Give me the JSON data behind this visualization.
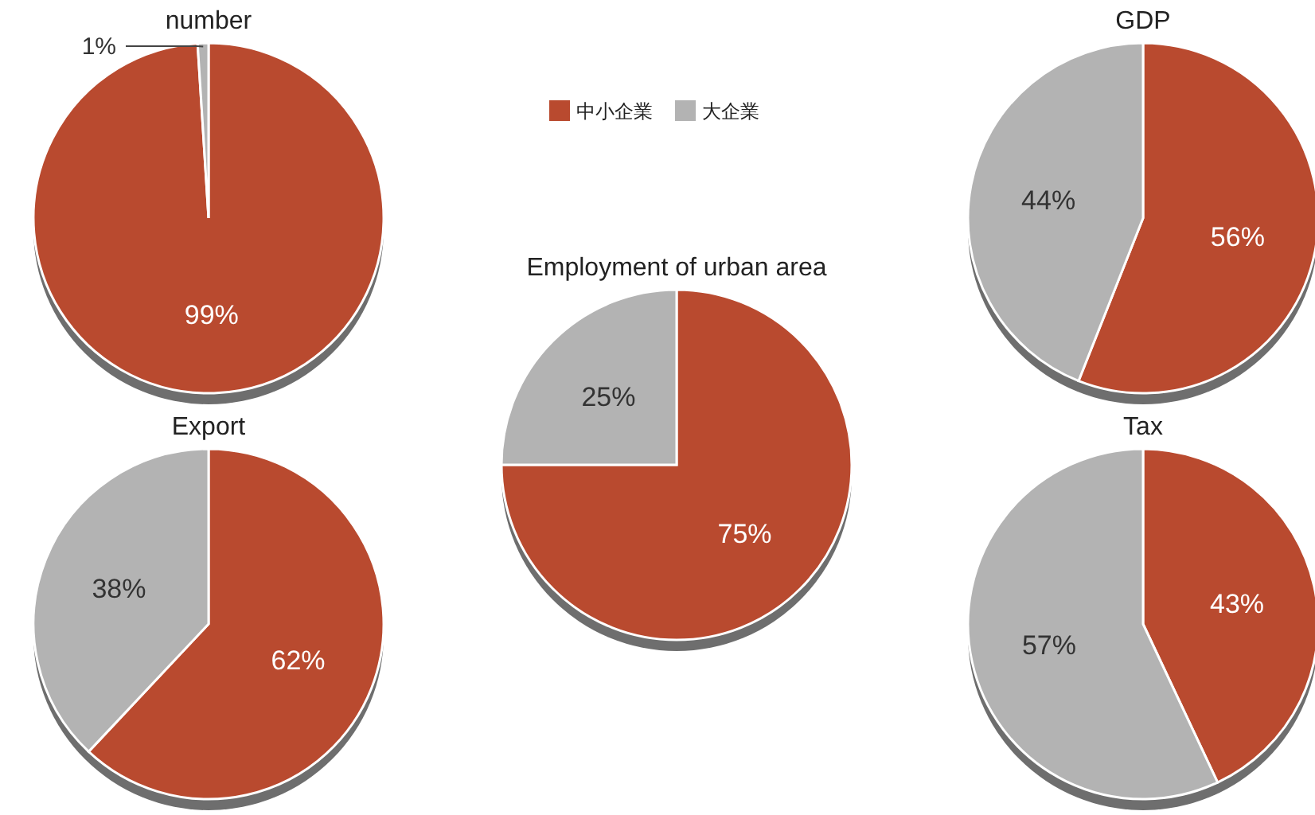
{
  "chart_data": [
    {
      "type": "pie",
      "title": "number",
      "values": [
        99,
        1
      ],
      "value_labels": [
        "99%",
        "1%"
      ],
      "colors": [
        "#b94a2f",
        "#b3b3b3"
      ]
    },
    {
      "type": "pie",
      "title": "GDP",
      "values": [
        56,
        44
      ],
      "value_labels": [
        "56%",
        "44%"
      ],
      "colors": [
        "#b94a2f",
        "#b3b3b3"
      ]
    },
    {
      "type": "pie",
      "title": "Employment of urban area",
      "categories": [
        "中小企業",
        "大企業"
      ],
      "values": [
        75,
        25
      ],
      "value_labels": [
        "75%",
        "25%"
      ],
      "colors": [
        "#b94a2f",
        "#b3b3b3"
      ],
      "legend": "top"
    },
    {
      "type": "pie",
      "title": "Export",
      "values": [
        62,
        38
      ],
      "value_labels": [
        "62%",
        "38%"
      ],
      "colors": [
        "#b94a2f",
        "#b3b3b3"
      ]
    },
    {
      "type": "pie",
      "title": "Tax",
      "values": [
        43,
        57
      ],
      "value_labels": [
        "43%",
        "57%"
      ],
      "colors": [
        "#b94a2f",
        "#b3b3b3"
      ]
    }
  ]
}
